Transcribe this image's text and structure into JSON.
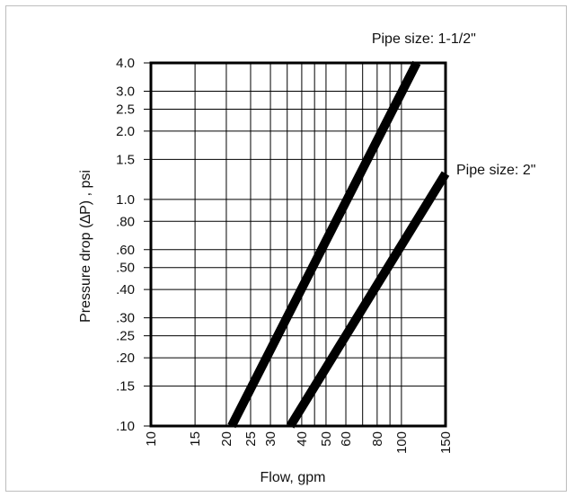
{
  "chart_data": {
    "type": "line",
    "xlabel": "Flow, gpm",
    "ylabel": "Pressure drop (∆P) , psi",
    "xscale": "log",
    "yscale": "log",
    "xlim": [
      10,
      150
    ],
    "ylim": [
      0.1,
      4.0
    ],
    "x_ticks": [
      10,
      15,
      20,
      25,
      30,
      40,
      50,
      60,
      80,
      100,
      150
    ],
    "x_tick_labels": [
      "10",
      "15",
      "20",
      "25",
      "30",
      "40",
      "50",
      "60",
      "80",
      "100",
      "150"
    ],
    "y_ticks": [
      0.1,
      0.15,
      0.2,
      0.25,
      0.3,
      0.4,
      0.5,
      0.6,
      0.8,
      1.0,
      1.5,
      2.0,
      2.5,
      3.0,
      4.0
    ],
    "y_tick_labels": [
      ".10",
      ".15",
      ".20",
      ".25",
      ".30",
      ".40",
      ".50",
      ".60",
      ".80",
      "1.0",
      "1.5",
      "2.0",
      "2.5",
      "3.0",
      "4.0"
    ],
    "x_grid": [
      10,
      15,
      20,
      25,
      30,
      35,
      40,
      45,
      50,
      60,
      70,
      80,
      90,
      100,
      150
    ],
    "grid": true,
    "line_color": "#000000",
    "series": [
      {
        "name": "Pipe size: 1-1/2\"",
        "x": [
          21,
          115
        ],
        "y": [
          0.1,
          4.0
        ]
      },
      {
        "name": "Pipe size: 2\"",
        "x": [
          36,
          150
        ],
        "y": [
          0.1,
          1.3
        ]
      }
    ]
  }
}
